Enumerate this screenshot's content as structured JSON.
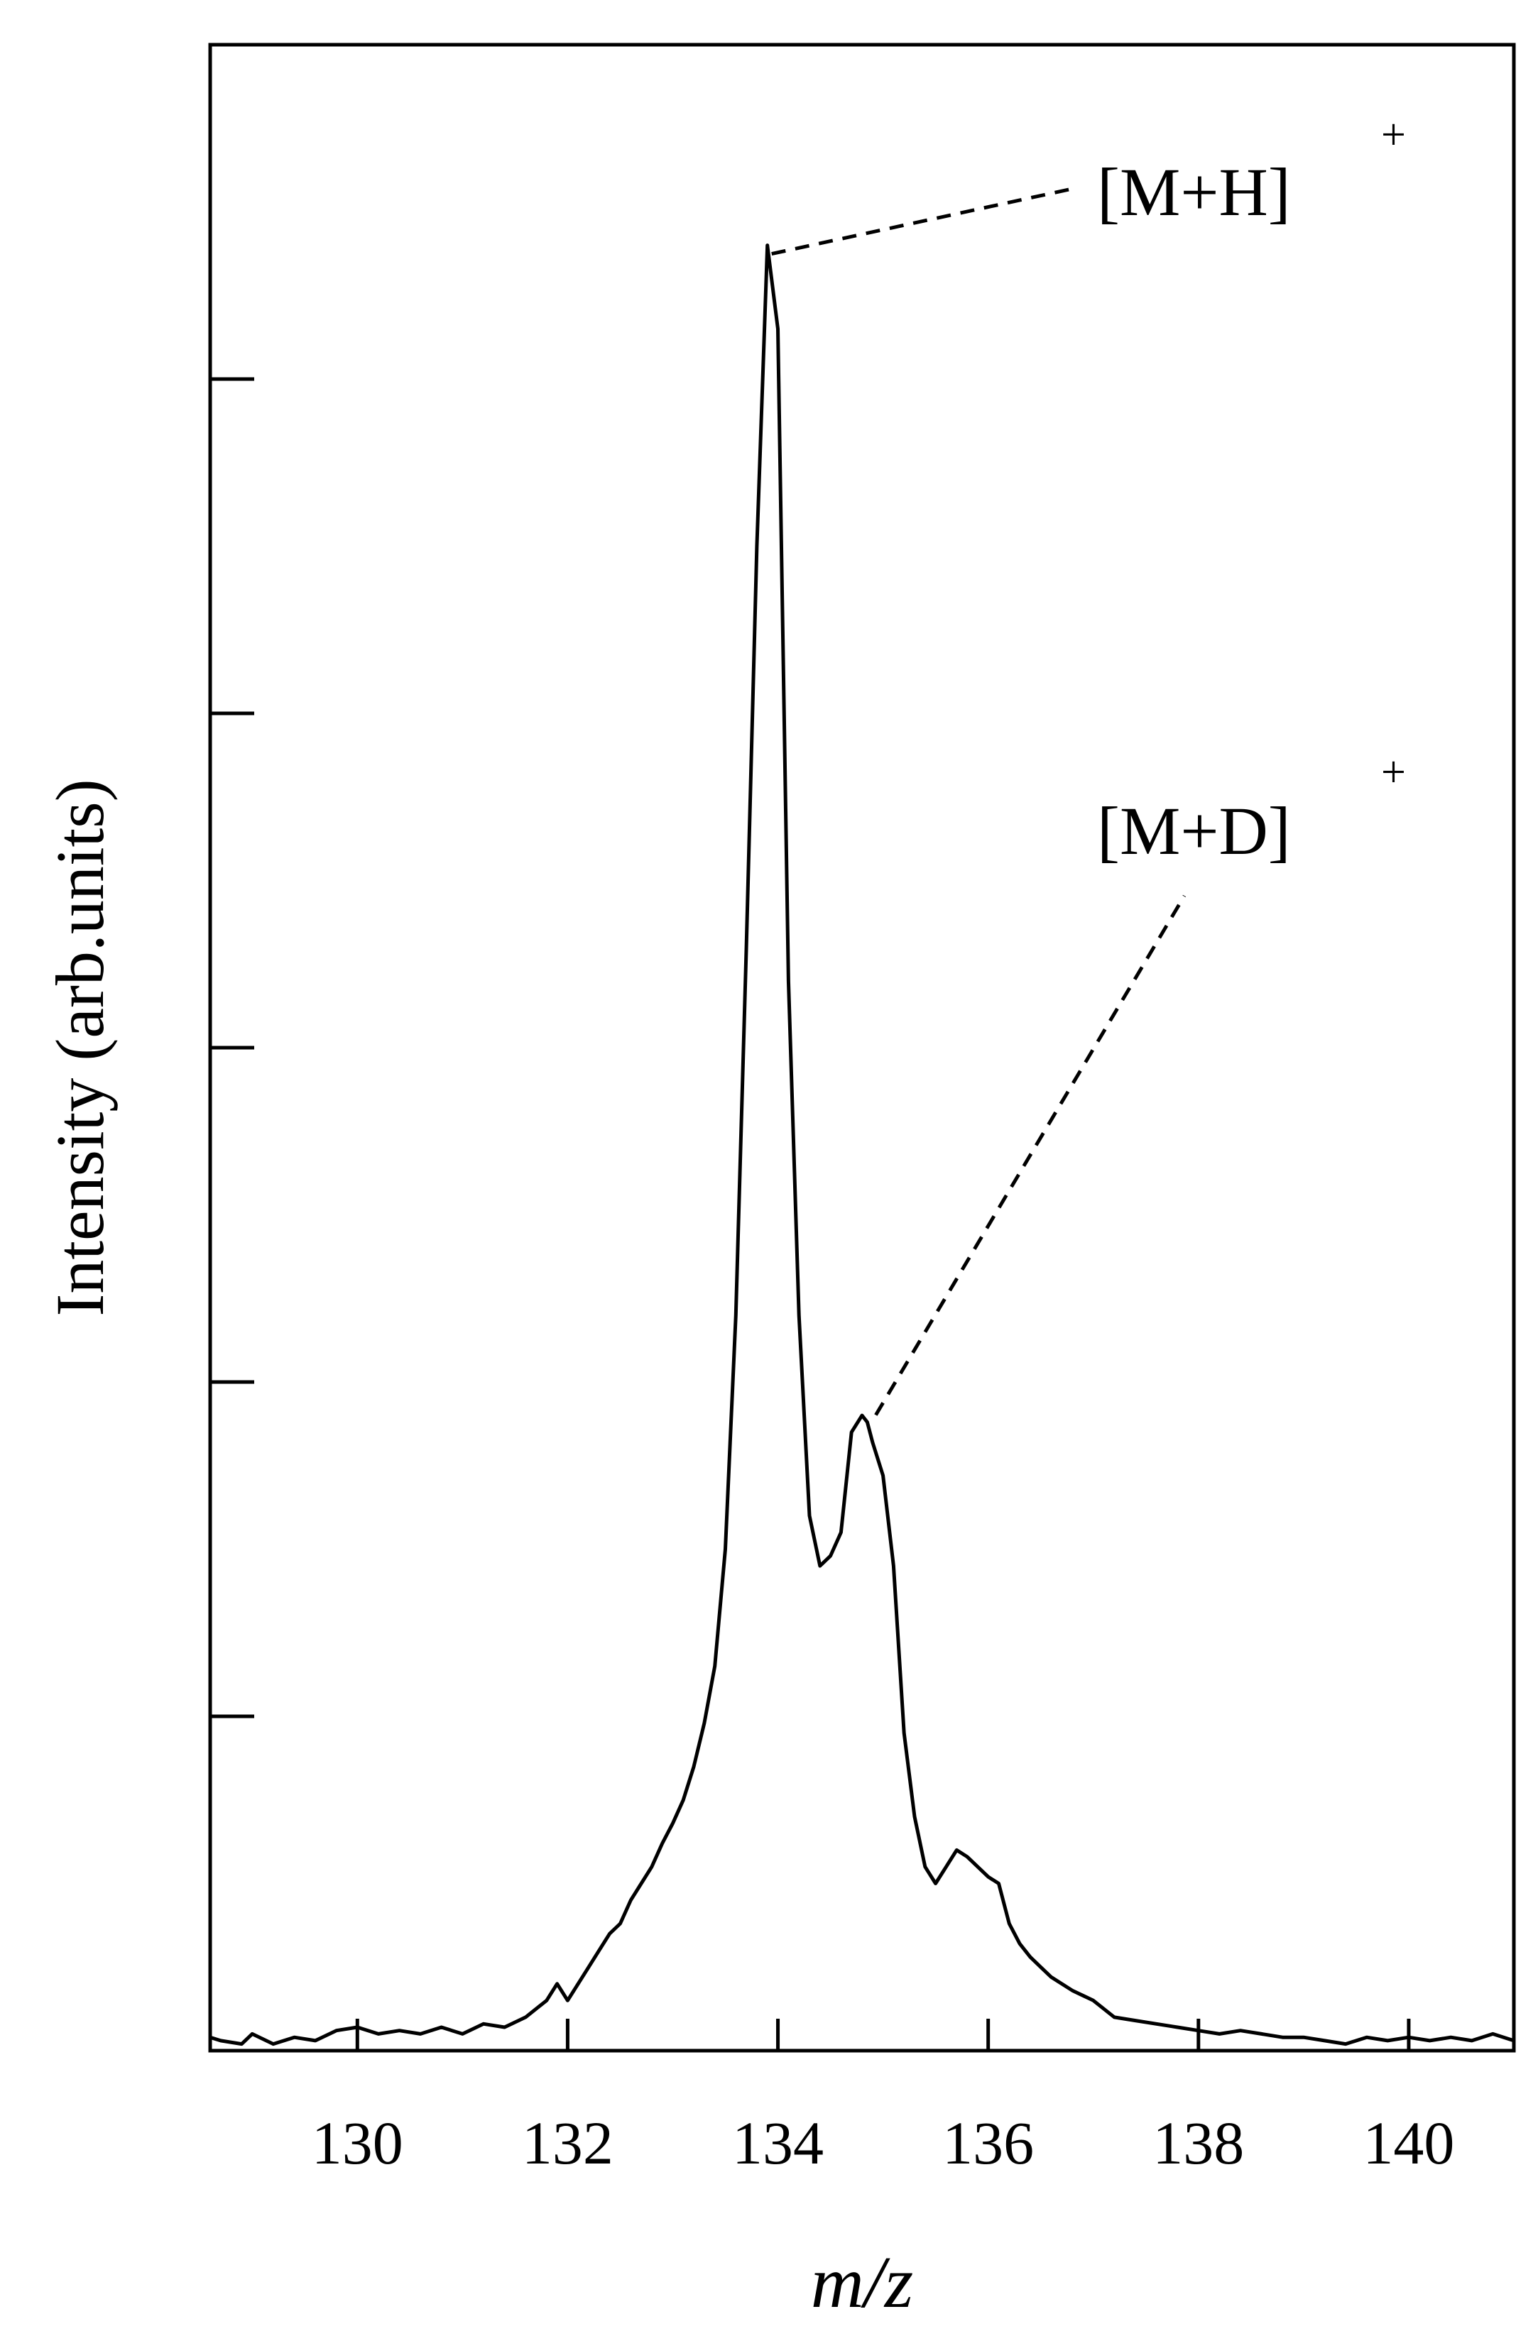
{
  "chart_data": {
    "type": "line",
    "xlabel": "m/z",
    "ylabel": "Intensity (arb.units)",
    "xlim": [
      128.6,
      141.0
    ],
    "ylim": [
      0,
      6.0
    ],
    "x_ticks": [
      130,
      132,
      134,
      136,
      138,
      140
    ],
    "x_tick_labels": [
      "130",
      "132",
      "134",
      "136",
      "138",
      "140"
    ],
    "y_ticks": [
      1,
      2,
      3,
      4,
      5
    ],
    "grid": false,
    "series": [
      {
        "x": [
          128.6,
          128.7,
          128.9,
          129.0,
          129.2,
          129.4,
          129.6,
          129.8,
          130.0,
          130.2,
          130.4,
          130.6,
          130.8,
          131.0,
          131.2,
          131.4,
          131.6,
          131.8,
          131.9,
          132.0,
          132.1,
          132.2,
          132.3,
          132.4,
          132.5,
          132.6,
          132.7,
          132.8,
          132.9,
          133.0,
          133.1,
          133.2,
          133.3,
          133.4,
          133.5,
          133.6,
          133.7,
          133.8,
          133.9,
          134.0,
          134.1,
          134.2,
          134.3,
          134.4,
          134.5,
          134.6,
          134.7,
          134.8,
          134.85,
          134.9,
          135.0,
          135.1,
          135.2,
          135.3,
          135.4,
          135.5,
          135.6,
          135.7,
          135.8,
          135.9,
          136.0,
          136.1,
          136.2,
          136.3,
          136.4,
          136.5,
          136.6,
          136.8,
          137.0,
          137.2,
          137.4,
          137.6,
          137.8,
          138.0,
          138.2,
          138.4,
          138.6,
          138.8,
          139.0,
          139.2,
          139.4,
          139.6,
          139.8,
          140.0,
          140.2,
          140.4,
          140.6,
          140.8,
          141.0
        ],
        "y": [
          0.04,
          0.03,
          0.02,
          0.05,
          0.02,
          0.04,
          0.03,
          0.06,
          0.07,
          0.05,
          0.06,
          0.05,
          0.07,
          0.05,
          0.08,
          0.07,
          0.1,
          0.15,
          0.2,
          0.15,
          0.2,
          0.25,
          0.3,
          0.35,
          0.38,
          0.45,
          0.5,
          0.55,
          0.62,
          0.68,
          0.75,
          0.85,
          0.98,
          1.15,
          1.5,
          2.2,
          3.3,
          4.5,
          5.4,
          5.15,
          3.2,
          2.2,
          1.6,
          1.45,
          1.48,
          1.55,
          1.85,
          1.9,
          1.88,
          1.82,
          1.72,
          1.45,
          0.95,
          0.7,
          0.55,
          0.5,
          0.55,
          0.6,
          0.58,
          0.55,
          0.52,
          0.5,
          0.38,
          0.32,
          0.28,
          0.25,
          0.22,
          0.18,
          0.15,
          0.1,
          0.09,
          0.08,
          0.07,
          0.06,
          0.05,
          0.06,
          0.05,
          0.04,
          0.04,
          0.03,
          0.02,
          0.04,
          0.03,
          0.04,
          0.03,
          0.04,
          0.03,
          0.05,
          0.03
        ]
      }
    ],
    "annotations": [
      {
        "label": "[M+H]",
        "superscript": "+",
        "target_x": 133.9,
        "target_y": 5.4
      },
      {
        "label": "[M+D]",
        "superscript": "+",
        "target_x": 134.85,
        "target_y": 1.88
      }
    ]
  }
}
